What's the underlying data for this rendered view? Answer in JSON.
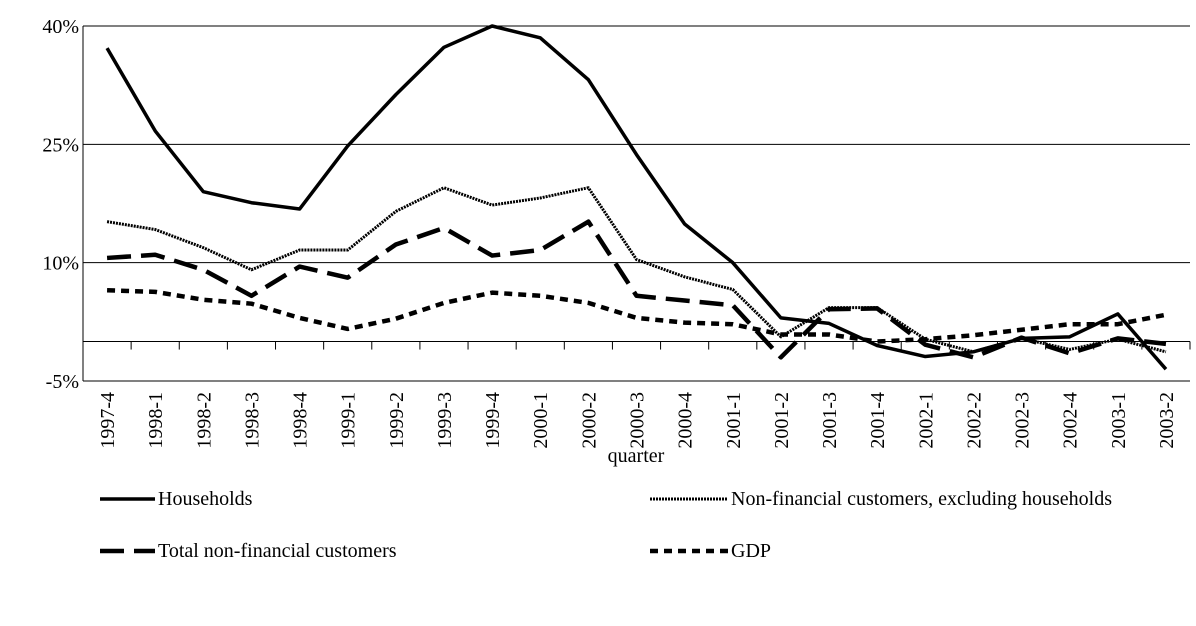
{
  "chart_data": {
    "type": "line",
    "x_label": "quarter",
    "categories": [
      "1997-4",
      "1998-1",
      "1998-2",
      "1998-3",
      "1998-4",
      "1999-1",
      "1999-2",
      "1999-3",
      "1999-4",
      "2000-1",
      "2000-2",
      "2000-3",
      "2000-4",
      "2001-1",
      "2001-2",
      "2001-3",
      "2001-4",
      "2002-1",
      "2002-2",
      "2002-3",
      "2002-4",
      "2003-1",
      "2003-2"
    ],
    "series": [
      {
        "name": "Households",
        "color": "#000000",
        "style": "solid",
        "values": [
          37.2,
          26.7,
          19.0,
          17.6,
          16.8,
          24.8,
          31.3,
          37.3,
          40.0,
          38.5,
          33.2,
          23.7,
          14.9,
          10.0,
          3.0,
          2.3,
          -0.5,
          -1.9,
          -1.3,
          0.4,
          0.6,
          3.5,
          -3.5
        ]
      },
      {
        "name": "Non-financial customers, excluding households",
        "color": "#000000",
        "style": "dotted",
        "values": [
          15.2,
          14.2,
          11.9,
          9.1,
          11.6,
          11.6,
          16.5,
          19.5,
          17.3,
          18.2,
          19.5,
          10.4,
          8.2,
          6.6,
          0.6,
          4.3,
          4.3,
          0.3,
          -1.3,
          0.4,
          -1.0,
          0.3,
          -1.3
        ]
      },
      {
        "name": "Total non-financial customers",
        "color": "#000000",
        "style": "long-dash",
        "values": [
          10.6,
          11.0,
          9.1,
          5.8,
          9.5,
          8.1,
          12.3,
          14.4,
          10.9,
          11.6,
          15.2,
          5.8,
          5.2,
          4.6,
          -2.0,
          4.1,
          4.2,
          -0.4,
          -2.0,
          0.5,
          -1.5,
          0.4,
          -0.3
        ]
      },
      {
        "name": "GDP",
        "color": "#000000",
        "style": "short-dash",
        "values": [
          6.5,
          6.3,
          5.3,
          4.8,
          3.0,
          1.6,
          2.9,
          4.9,
          6.2,
          5.8,
          4.9,
          3.0,
          2.4,
          2.2,
          0.9,
          0.9,
          0.0,
          0.3,
          0.8,
          1.5,
          2.2,
          2.2,
          3.4
        ]
      }
    ],
    "ylim": [
      -5,
      40
    ],
    "yticks": [
      {
        "value": -5,
        "label": "-5%"
      },
      {
        "value": 10,
        "label": "10%"
      },
      {
        "value": 25,
        "label": "25%"
      },
      {
        "value": 40,
        "label": "40%"
      }
    ],
    "grid": true
  }
}
